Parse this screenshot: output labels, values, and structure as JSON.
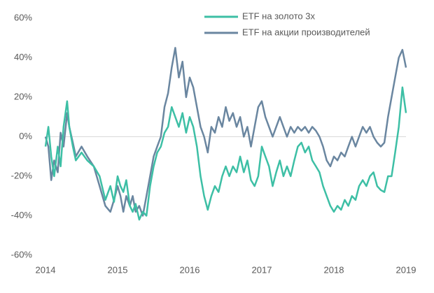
{
  "chart_data": {
    "type": "line",
    "x": [
      2014.0,
      2014.04,
      2014.08,
      2014.12,
      2014.17,
      2014.21,
      2014.25,
      2014.3,
      2014.33,
      2014.38,
      2014.42,
      2014.5,
      2014.58,
      2014.67,
      2014.75,
      2014.83,
      2014.9,
      2014.95,
      2015.0,
      2015.04,
      2015.08,
      2015.12,
      2015.17,
      2015.21,
      2015.25,
      2015.3,
      2015.35,
      2015.4,
      2015.45,
      2015.5,
      2015.55,
      2015.6,
      2015.65,
      2015.7,
      2015.75,
      2015.8,
      2015.85,
      2015.9,
      2015.95,
      2016.0,
      2016.05,
      2016.1,
      2016.15,
      2016.2,
      2016.25,
      2016.3,
      2016.35,
      2016.4,
      2016.45,
      2016.5,
      2016.55,
      2016.6,
      2016.65,
      2016.7,
      2016.75,
      2016.8,
      2016.85,
      2016.9,
      2016.95,
      2017.0,
      2017.05,
      2017.1,
      2017.15,
      2017.2,
      2017.25,
      2017.3,
      2017.35,
      2017.4,
      2017.45,
      2017.5,
      2017.55,
      2017.6,
      2017.65,
      2017.7,
      2017.75,
      2017.8,
      2017.85,
      2017.9,
      2017.95,
      2018.0,
      2018.05,
      2018.1,
      2018.15,
      2018.2,
      2018.25,
      2018.3,
      2018.35,
      2018.4,
      2018.45,
      2018.5,
      2018.55,
      2018.6,
      2018.65,
      2018.7,
      2018.75,
      2018.8,
      2018.85,
      2018.9,
      2018.95,
      2019.0
    ],
    "series": [
      {
        "name": "ETF на золото 3x",
        "color": "#3dbfa5",
        "values": [
          -5,
          5,
          -10,
          -20,
          -5,
          -15,
          5,
          18,
          5,
          -5,
          -12,
          -8,
          -12,
          -15,
          -20,
          -32,
          -25,
          -33,
          -20,
          -25,
          -28,
          -22,
          -35,
          -38,
          -34,
          -42,
          -38,
          -40,
          -25,
          -15,
          -8,
          -5,
          2,
          5,
          15,
          10,
          5,
          12,
          2,
          10,
          5,
          -5,
          -20,
          -30,
          -37,
          -30,
          -25,
          -28,
          -20,
          -15,
          -20,
          -15,
          -18,
          -10,
          -18,
          -12,
          -22,
          -25,
          -20,
          -5,
          -10,
          -15,
          -25,
          -18,
          -12,
          -20,
          -15,
          -20,
          -12,
          -5,
          -3,
          -8,
          -5,
          -12,
          -15,
          -18,
          -25,
          -30,
          -35,
          -38,
          -35,
          -37,
          -32,
          -35,
          -30,
          -32,
          -25,
          -22,
          -25,
          -20,
          -18,
          -25,
          -27,
          -28,
          -20,
          -20,
          -8,
          5,
          25,
          12
        ]
      },
      {
        "name": "ETF на акции производителей",
        "color": "#6a86a0",
        "values": [
          0,
          -5,
          -22,
          -12,
          -18,
          2,
          -5,
          12,
          5,
          -3,
          -10,
          -5,
          -10,
          -15,
          -25,
          -35,
          -38,
          -32,
          -25,
          -30,
          -38,
          -30,
          -35,
          -30,
          -38,
          -35,
          -40,
          -30,
          -20,
          -10,
          -5,
          0,
          15,
          22,
          35,
          45,
          30,
          38,
          20,
          30,
          25,
          15,
          5,
          0,
          -8,
          5,
          2,
          10,
          5,
          15,
          8,
          12,
          5,
          10,
          0,
          5,
          -5,
          5,
          15,
          18,
          10,
          5,
          0,
          5,
          10,
          5,
          0,
          5,
          2,
          5,
          3,
          5,
          2,
          5,
          3,
          0,
          -5,
          -12,
          -15,
          -10,
          -12,
          -8,
          -10,
          -5,
          0,
          -5,
          0,
          5,
          2,
          5,
          0,
          -3,
          -5,
          -3,
          10,
          20,
          30,
          40,
          44,
          35
        ]
      }
    ],
    "xlim": [
      2014,
      2019
    ],
    "xticks": [
      2014,
      2015,
      2016,
      2017,
      2018,
      2019
    ],
    "ylim": [
      -60,
      60
    ],
    "yticks": [
      {
        "value": -60,
        "label": "-60%"
      },
      {
        "value": -40,
        "label": "-40%"
      },
      {
        "value": -20,
        "label": "-20%"
      },
      {
        "value": 0,
        "label": "0%"
      },
      {
        "value": 20,
        "label": "20%"
      },
      {
        "value": 40,
        "label": "40%"
      },
      {
        "value": 60,
        "label": "60%"
      }
    ],
    "zero_line": true,
    "legend": "top-right"
  }
}
